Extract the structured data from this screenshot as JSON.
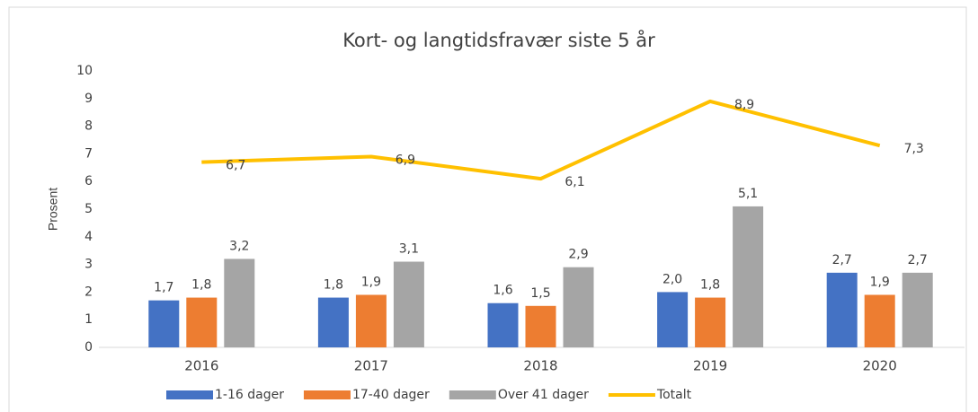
{
  "chart_data": {
    "type": "bar",
    "title": "Kort- og langtidsfravær siste 5 år",
    "y_label": "Prosent",
    "categories": [
      "2016",
      "2017",
      "2018",
      "2019",
      "2020"
    ],
    "series": [
      {
        "name": "1-16 dager",
        "color": "#4472c4",
        "values": [
          1.7,
          1.8,
          1.6,
          2.0,
          2.7
        ],
        "value_labels": [
          "1,7",
          "1,8",
          "1,6",
          "2,0",
          "2,7"
        ]
      },
      {
        "name": "17-40 dager",
        "color": "#ed7d31",
        "values": [
          1.8,
          1.9,
          1.5,
          1.8,
          1.9
        ],
        "value_labels": [
          "1,8",
          "1,9",
          "1,5",
          "1,8",
          "1,9"
        ]
      },
      {
        "name": "Over 41 dager",
        "color": "#a5a5a5",
        "values": [
          3.2,
          3.1,
          2.9,
          5.1,
          2.7
        ],
        "value_labels": [
          "3,2",
          "3,1",
          "2,9",
          "5,1",
          "2,7"
        ]
      },
      {
        "name": "Totalt",
        "color": "#ffc000",
        "type": "line",
        "values": [
          6.7,
          6.9,
          6.1,
          8.9,
          7.3
        ],
        "value_labels": [
          "6,7",
          "6,9",
          "6,1",
          "8,9",
          "7,3"
        ]
      }
    ],
    "ylim": [
      0,
      10
    ],
    "yticks": [
      0,
      1,
      2,
      3,
      4,
      5,
      6,
      7,
      8,
      9,
      10
    ],
    "grid": false,
    "legend": "bottom"
  }
}
